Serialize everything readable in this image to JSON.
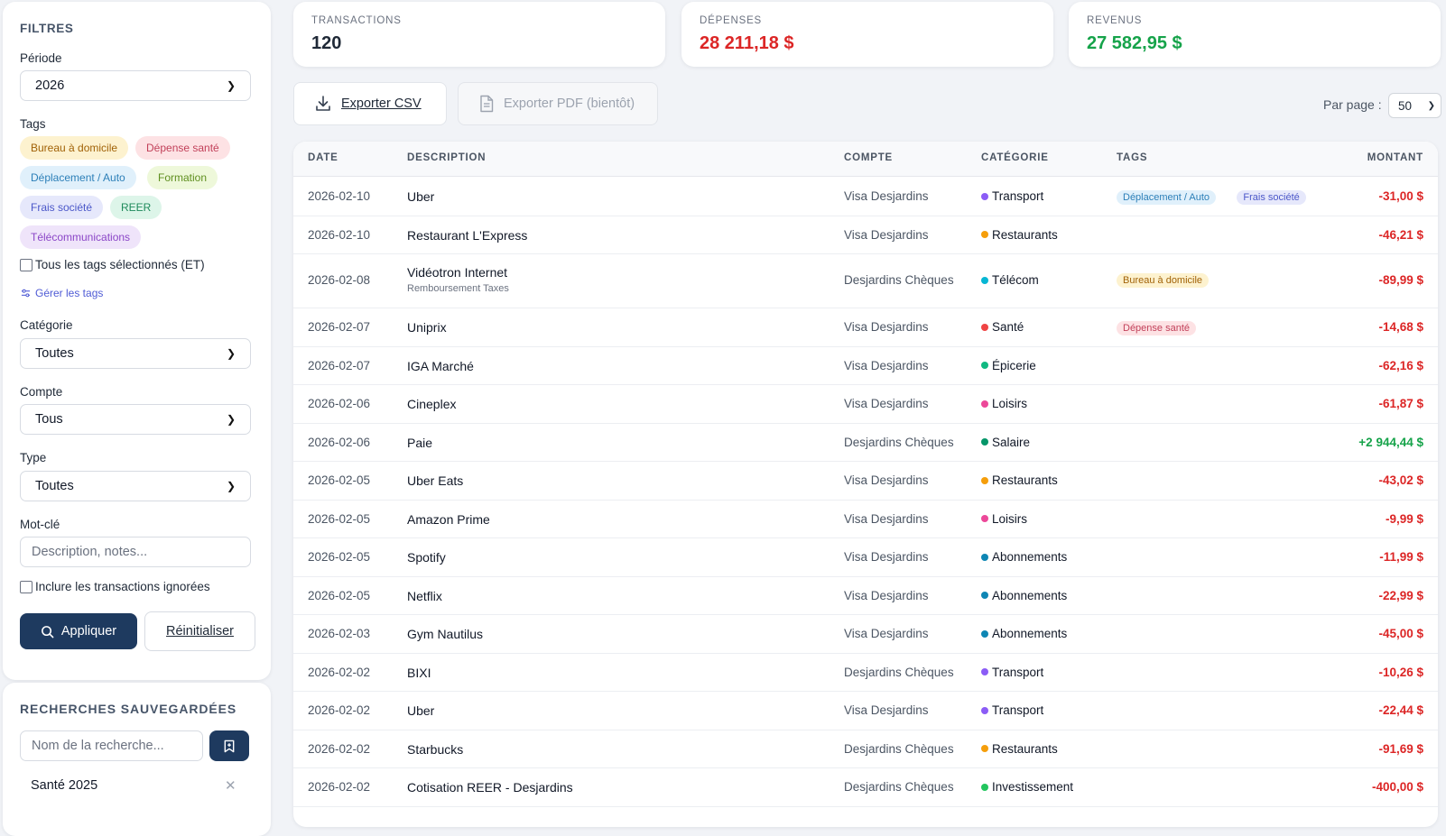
{
  "filters": {
    "title": "FILTRES",
    "period_label": "Période",
    "period_value": "2026",
    "tags_label": "Tags",
    "tags": [
      {
        "label": "Bureau à domicile",
        "bg": "#fdf2cf",
        "fg": "#a16207"
      },
      {
        "label": "Dépense santé",
        "bg": "#fde2e4",
        "fg": "#c2415a"
      },
      {
        "label": "Déplacement / Auto",
        "bg": "#e0f0fb",
        "fg": "#2c7fb8"
      },
      {
        "label": "Formation",
        "bg": "#eef8da",
        "fg": "#5f8f1f"
      },
      {
        "label": "Frais société",
        "bg": "#e6e8fb",
        "fg": "#4b57c9"
      },
      {
        "label": "REER",
        "bg": "#ddf5e9",
        "fg": "#1f8a5b"
      },
      {
        "label": "Télécommunications",
        "bg": "#efe4fa",
        "fg": "#8b46c7"
      }
    ],
    "all_tags_label": "Tous les tags sélectionnés (ET)",
    "manage_tags": "Gérer les tags",
    "category_label": "Catégorie",
    "category_value": "Toutes",
    "account_label": "Compte",
    "account_value": "Tous",
    "type_label": "Type",
    "type_value": "Toutes",
    "keyword_label": "Mot-clé",
    "keyword_placeholder": "Description, notes...",
    "include_ignored": "Inclure les transactions ignorées",
    "apply": "Appliquer",
    "reset": "Réinitialiser"
  },
  "saved": {
    "title": "RECHERCHES SAUVEGARDÉES",
    "name_placeholder": "Nom de la recherche...",
    "items": [
      "Santé 2025"
    ]
  },
  "stats": {
    "transactions_label": "TRANSACTIONS",
    "transactions_value": "120",
    "expenses_label": "DÉPENSES",
    "expenses_value": "28 211,18 $",
    "income_label": "REVENUS",
    "income_value": "27 582,95 $"
  },
  "toolbar": {
    "export_csv": "Exporter CSV",
    "export_pdf": "Exporter PDF (bientôt)",
    "per_page_label": "Par page :",
    "per_page_value": "50"
  },
  "colors": {
    "negative": "#dc2626",
    "positive": "#16a34a",
    "primary": "#1e3a5f"
  },
  "table": {
    "headers": [
      "DATE",
      "DESCRIPTION",
      "COMPTE",
      "CATÉGORIE",
      "TAGS",
      "MONTANT"
    ],
    "rows": [
      {
        "date": "2026-02-10",
        "desc": "Uber",
        "sub": "",
        "account": "Visa Desjardins",
        "category": "Transport",
        "cat_color": "#8b5cf6",
        "tags": [
          "Déplacement / Auto",
          "Frais société"
        ],
        "amount": "-31,00 $",
        "positive": false
      },
      {
        "date": "2026-02-10",
        "desc": "Restaurant L'Express",
        "sub": "",
        "account": "Visa Desjardins",
        "category": "Restaurants",
        "cat_color": "#f59e0b",
        "tags": [],
        "amount": "-46,21 $",
        "positive": false
      },
      {
        "date": "2026-02-08",
        "desc": "Vidéotron Internet",
        "sub": "Remboursement Taxes",
        "account": "Desjardins Chèques",
        "category": "Télécom",
        "cat_color": "#06b6d4",
        "tags": [
          "Bureau à domicile"
        ],
        "amount": "-89,99 $",
        "positive": false
      },
      {
        "date": "2026-02-07",
        "desc": "Uniprix",
        "sub": "",
        "account": "Visa Desjardins",
        "category": "Santé",
        "cat_color": "#ef4444",
        "tags": [
          "Dépense santé"
        ],
        "amount": "-14,68 $",
        "positive": false
      },
      {
        "date": "2026-02-07",
        "desc": "IGA Marché",
        "sub": "",
        "account": "Visa Desjardins",
        "category": "Épicerie",
        "cat_color": "#10b981",
        "tags": [],
        "amount": "-62,16 $",
        "positive": false
      },
      {
        "date": "2026-02-06",
        "desc": "Cineplex",
        "sub": "",
        "account": "Visa Desjardins",
        "category": "Loisirs",
        "cat_color": "#ec4899",
        "tags": [],
        "amount": "-61,87 $",
        "positive": false
      },
      {
        "date": "2026-02-06",
        "desc": "Paie",
        "sub": "",
        "account": "Desjardins Chèques",
        "category": "Salaire",
        "cat_color": "#059669",
        "tags": [],
        "amount": "+2 944,44 $",
        "positive": true
      },
      {
        "date": "2026-02-05",
        "desc": "Uber Eats",
        "sub": "",
        "account": "Visa Desjardins",
        "category": "Restaurants",
        "cat_color": "#f59e0b",
        "tags": [],
        "amount": "-43,02 $",
        "positive": false
      },
      {
        "date": "2026-02-05",
        "desc": "Amazon Prime",
        "sub": "",
        "account": "Visa Desjardins",
        "category": "Loisirs",
        "cat_color": "#ec4899",
        "tags": [],
        "amount": "-9,99 $",
        "positive": false
      },
      {
        "date": "2026-02-05",
        "desc": "Spotify",
        "sub": "",
        "account": "Visa Desjardins",
        "category": "Abonnements",
        "cat_color": "#0e86b4",
        "tags": [],
        "amount": "-11,99 $",
        "positive": false
      },
      {
        "date": "2026-02-05",
        "desc": "Netflix",
        "sub": "",
        "account": "Visa Desjardins",
        "category": "Abonnements",
        "cat_color": "#0e86b4",
        "tags": [],
        "amount": "-22,99 $",
        "positive": false
      },
      {
        "date": "2026-02-03",
        "desc": "Gym Nautilus",
        "sub": "",
        "account": "Visa Desjardins",
        "category": "Abonnements",
        "cat_color": "#0e86b4",
        "tags": [],
        "amount": "-45,00 $",
        "positive": false
      },
      {
        "date": "2026-02-02",
        "desc": "BIXI",
        "sub": "",
        "account": "Desjardins Chèques",
        "category": "Transport",
        "cat_color": "#8b5cf6",
        "tags": [],
        "amount": "-10,26 $",
        "positive": false
      },
      {
        "date": "2026-02-02",
        "desc": "Uber",
        "sub": "",
        "account": "Visa Desjardins",
        "category": "Transport",
        "cat_color": "#8b5cf6",
        "tags": [],
        "amount": "-22,44 $",
        "positive": false
      },
      {
        "date": "2026-02-02",
        "desc": "Starbucks",
        "sub": "",
        "account": "Desjardins Chèques",
        "category": "Restaurants",
        "cat_color": "#f59e0b",
        "tags": [],
        "amount": "-91,69 $",
        "positive": false
      },
      {
        "date": "2026-02-02",
        "desc": "Cotisation REER - Desjardins",
        "sub": "",
        "account": "Desjardins Chèques",
        "category": "Investissement",
        "cat_color": "#22c55e",
        "tags": [],
        "amount": "-400,00 $",
        "positive": false
      }
    ]
  }
}
